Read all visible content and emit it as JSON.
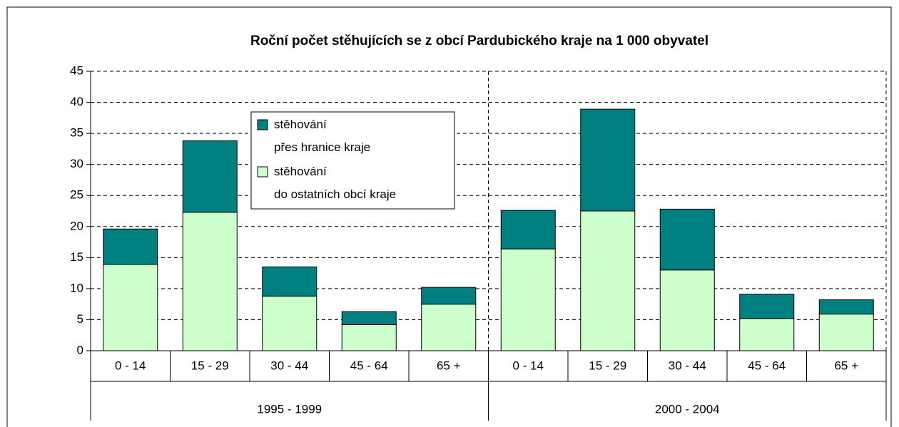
{
  "chart_data": {
    "type": "stacked_bar",
    "title": "Roční počet stěhujících se z obcí Pardubického kraje na 1 000 obyvatel",
    "categories": [
      "0 - 14",
      "15 - 29",
      "30 - 44",
      "45 - 64",
      "65 +",
      "0 - 14",
      "15 - 29",
      "30 - 44",
      "45 - 64",
      "65 +"
    ],
    "groups": [
      "1995 - 1999",
      "2000 - 2004"
    ],
    "series": [
      {
        "name": "stěhování\ndo ostatních obcí kraje",
        "color": "#ccffcc",
        "values": [
          13.9,
          22.3,
          8.8,
          4.2,
          7.5,
          16.4,
          22.5,
          13.0,
          5.2,
          5.9
        ]
      },
      {
        "name": "stěhování\npřes hranice kraje",
        "color": "#008080",
        "values": [
          5.7,
          11.5,
          4.7,
          2.1,
          2.7,
          6.2,
          16.4,
          9.8,
          3.9,
          2.3
        ]
      }
    ],
    "ylim": [
      0,
      45
    ],
    "yticks": [
      0,
      5,
      10,
      15,
      20,
      25,
      30,
      35,
      40,
      45
    ],
    "grid": true
  }
}
